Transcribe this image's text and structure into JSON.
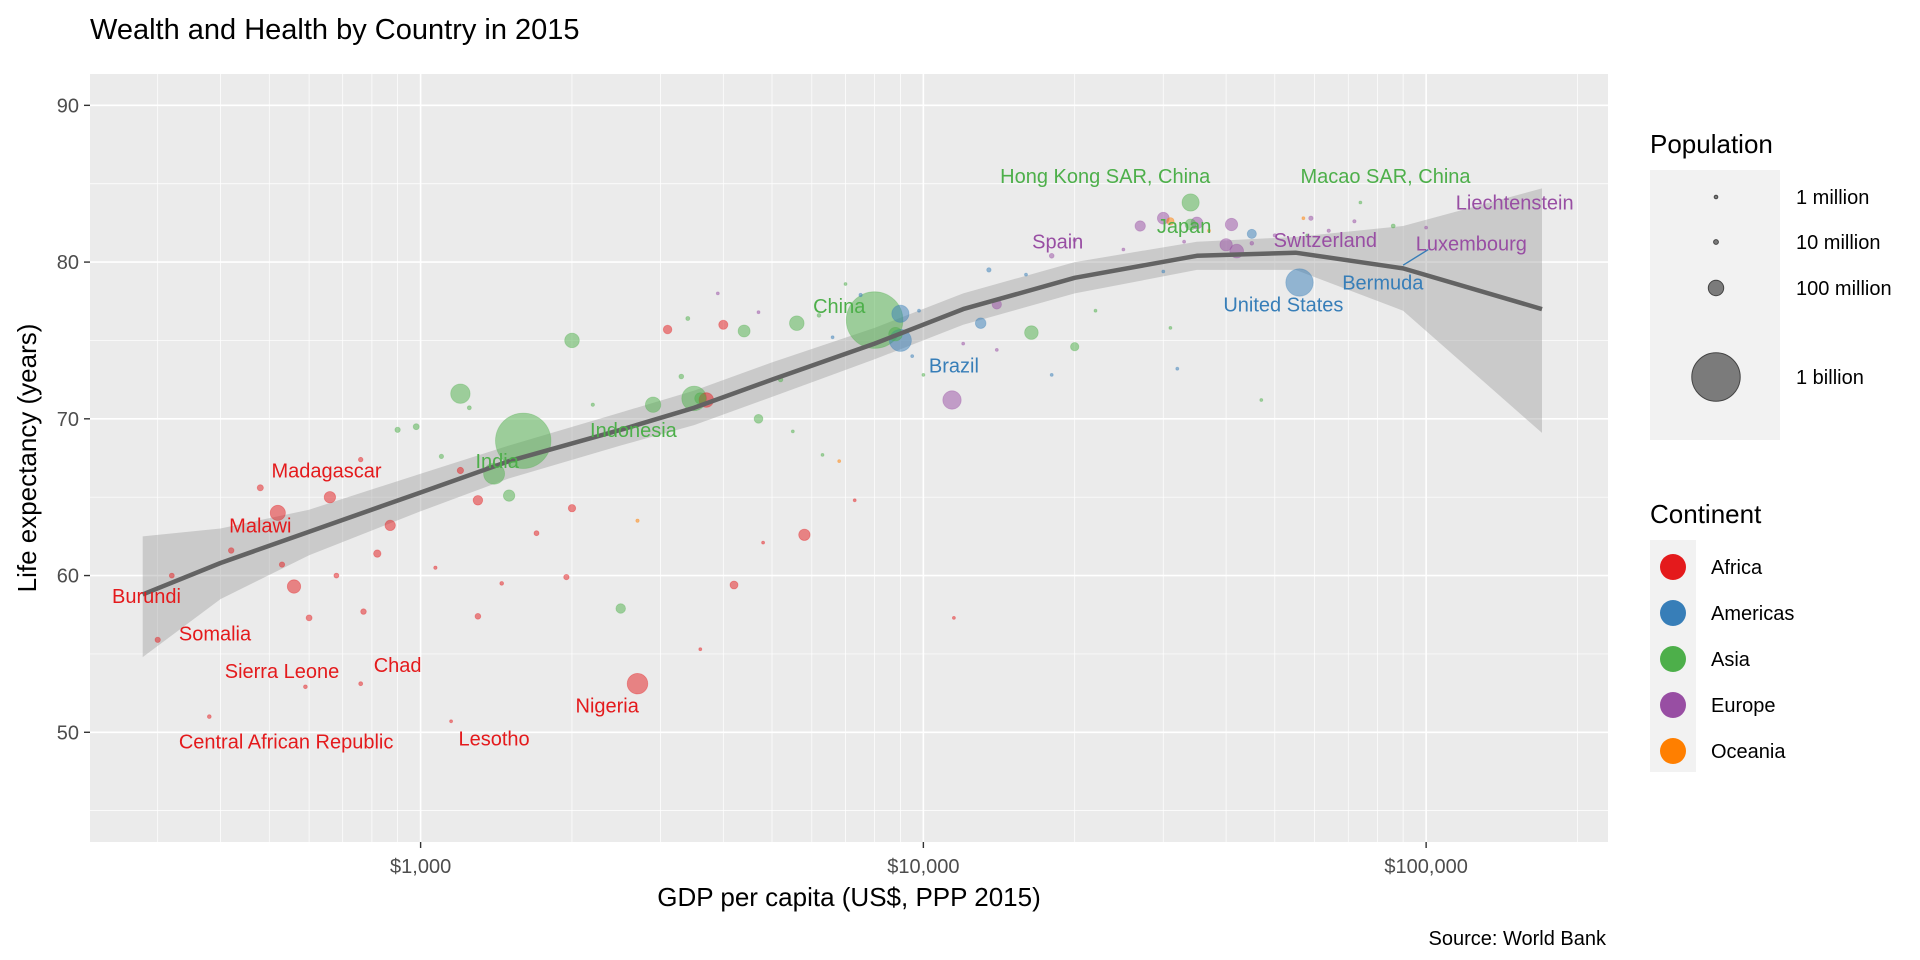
{
  "chart_data": {
    "type": "scatter",
    "title": "Wealth and Health by Country in 2015",
    "xlabel": "GDP per capita (US$, PPP 2015)",
    "ylabel": "Life expectancy (years)",
    "caption": "Source: World Bank",
    "x_scale": "log10",
    "xlim": [
      220,
      230000
    ],
    "ylim": [
      43,
      92
    ],
    "x_ticks": [
      1000,
      10000,
      100000
    ],
    "x_tick_labels": [
      "$1,000",
      "$10,000",
      "$100,000"
    ],
    "y_ticks": [
      50,
      60,
      70,
      80,
      90
    ],
    "y_tick_labels": [
      "50",
      "60",
      "70",
      "80",
      "90"
    ],
    "grid": true,
    "legend_position": "right",
    "legend_size": {
      "title": "Population",
      "entries": [
        {
          "label": "1 million",
          "value": 1
        },
        {
          "label": "10 million",
          "value": 10
        },
        {
          "label": "100 million",
          "value": 100
        },
        {
          "label": "1 billion",
          "value": 1000
        }
      ]
    },
    "legend_color": {
      "title": "Continent",
      "entries": [
        {
          "label": "Africa",
          "color": "#E41A1C"
        },
        {
          "label": "Americas",
          "color": "#377EB8"
        },
        {
          "label": "Asia",
          "color": "#4DAF4A"
        },
        {
          "label": "Europe",
          "color": "#984EA3"
        },
        {
          "label": "Oceania",
          "color": "#FF7F00"
        }
      ]
    },
    "trend": [
      [
        280,
        58.8
      ],
      [
        400,
        60.8
      ],
      [
        600,
        62.8
      ],
      [
        1000,
        65.3
      ],
      [
        1500,
        67.3
      ],
      [
        2500,
        69.3
      ],
      [
        3500,
        70.7
      ],
      [
        5000,
        72.5
      ],
      [
        8000,
        74.8
      ],
      [
        12000,
        77.0
      ],
      [
        20000,
        79.0
      ],
      [
        35000,
        80.4
      ],
      [
        55000,
        80.6
      ],
      [
        90000,
        79.6
      ],
      [
        170000,
        77.0
      ]
    ],
    "trend_band": {
      "upper": [
        [
          280,
          62.5
        ],
        [
          400,
          63.0
        ],
        [
          600,
          64.2
        ],
        [
          1000,
          66.5
        ],
        [
          1500,
          68.3
        ],
        [
          2500,
          70.4
        ],
        [
          3500,
          71.8
        ],
        [
          5000,
          73.6
        ],
        [
          8000,
          75.8
        ],
        [
          12000,
          78.0
        ],
        [
          20000,
          80.0
        ],
        [
          35000,
          81.3
        ],
        [
          55000,
          81.6
        ],
        [
          90000,
          82.3
        ],
        [
          170000,
          84.7
        ]
      ],
      "lower": [
        [
          280,
          54.8
        ],
        [
          400,
          58.5
        ],
        [
          600,
          61.3
        ],
        [
          1000,
          64.1
        ],
        [
          1500,
          66.2
        ],
        [
          2500,
          68.3
        ],
        [
          3500,
          69.6
        ],
        [
          5000,
          71.4
        ],
        [
          8000,
          73.8
        ],
        [
          12000,
          76.0
        ],
        [
          20000,
          78.0
        ],
        [
          35000,
          79.5
        ],
        [
          55000,
          79.5
        ],
        [
          90000,
          76.9
        ],
        [
          170000,
          69.1
        ]
      ]
    },
    "labels": [
      {
        "text": "Madagascar",
        "x": 650,
        "y": 66.7,
        "continent": "Africa"
      },
      {
        "text": "Malawi",
        "x": 480,
        "y": 63.2,
        "continent": "Africa"
      },
      {
        "text": "Burundi",
        "x": 285,
        "y": 58.7,
        "continent": "Africa"
      },
      {
        "text": "Somalia",
        "x": 390,
        "y": 56.3,
        "continent": "Africa"
      },
      {
        "text": "Sierra Leone",
        "x": 530,
        "y": 53.9,
        "continent": "Africa"
      },
      {
        "text": "Chad",
        "x": 900,
        "y": 54.3,
        "continent": "Africa"
      },
      {
        "text": "Central African Republic",
        "x": 540,
        "y": 49.4,
        "continent": "Africa"
      },
      {
        "text": "Lesotho",
        "x": 1400,
        "y": 49.6,
        "continent": "Africa"
      },
      {
        "text": "Nigeria",
        "x": 2350,
        "y": 51.7,
        "continent": "Africa"
      },
      {
        "text": "India",
        "x": 1420,
        "y": 67.3,
        "continent": "Asia"
      },
      {
        "text": "Indonesia",
        "x": 2650,
        "y": 69.3,
        "continent": "Asia"
      },
      {
        "text": "China",
        "x": 6800,
        "y": 77.2,
        "continent": "Asia"
      },
      {
        "text": "Brazil",
        "x": 11500,
        "y": 73.4,
        "continent": "Americas"
      },
      {
        "text": "Hong Kong SAR, China",
        "x": 23000,
        "y": 85.5,
        "continent": "Asia"
      },
      {
        "text": "Macao SAR, China",
        "x": 83000,
        "y": 85.5,
        "continent": "Asia"
      },
      {
        "text": "Japan",
        "x": 33000,
        "y": 82.3,
        "continent": "Asia"
      },
      {
        "text": "Spain",
        "x": 18500,
        "y": 81.3,
        "continent": "Europe"
      },
      {
        "text": "Switzerland",
        "x": 63000,
        "y": 81.4,
        "continent": "Europe"
      },
      {
        "text": "Liechtenstein",
        "x": 150000,
        "y": 83.8,
        "continent": "Europe"
      },
      {
        "text": "Luxembourg",
        "x": 123000,
        "y": 81.2,
        "continent": "Europe"
      },
      {
        "text": "Bermuda",
        "x": 82000,
        "y": 78.7,
        "continent": "Americas"
      },
      {
        "text": "United States",
        "x": 52000,
        "y": 77.3,
        "continent": "Americas"
      }
    ],
    "label_segments": [
      {
        "x1": 101000,
        "y1": 80.8,
        "x2": 90000,
        "y2": 79.8,
        "continent": "Americas"
      }
    ],
    "points": [
      {
        "x": 1600,
        "y": 68.6,
        "pop": 1311,
        "continent": "Asia"
      },
      {
        "x": 8000,
        "y": 76.3,
        "pop": 1371,
        "continent": "Asia"
      },
      {
        "x": 56000,
        "y": 78.7,
        "pop": 321,
        "continent": "Americas"
      },
      {
        "x": 2700,
        "y": 53.1,
        "pop": 182,
        "continent": "Africa"
      },
      {
        "x": 3500,
        "y": 71.3,
        "pop": 258,
        "continent": "Asia"
      },
      {
        "x": 9000,
        "y": 75.0,
        "pop": 206,
        "continent": "Americas"
      },
      {
        "x": 1400,
        "y": 66.5,
        "pop": 188,
        "continent": "Asia"
      },
      {
        "x": 1200,
        "y": 71.6,
        "pop": 161,
        "continent": "Asia"
      },
      {
        "x": 11400,
        "y": 71.2,
        "pop": 144,
        "continent": "Europe"
      },
      {
        "x": 34000,
        "y": 83.8,
        "pop": 127,
        "continent": "Asia"
      },
      {
        "x": 9000,
        "y": 76.7,
        "pop": 127,
        "continent": "Americas"
      },
      {
        "x": 2900,
        "y": 70.9,
        "pop": 101,
        "continent": "Asia"
      },
      {
        "x": 520,
        "y": 64.0,
        "pop": 99,
        "continent": "Africa"
      },
      {
        "x": 5600,
        "y": 76.1,
        "pop": 91,
        "continent": "Asia"
      },
      {
        "x": 8800,
        "y": 75.4,
        "pop": 79,
        "continent": "Asia"
      },
      {
        "x": 42000,
        "y": 80.7,
        "pop": 82,
        "continent": "Europe"
      },
      {
        "x": 16400,
        "y": 75.5,
        "pop": 79,
        "continent": "Asia"
      },
      {
        "x": 2000,
        "y": 75.0,
        "pop": 91,
        "continent": "Asia"
      },
      {
        "x": 560,
        "y": 59.3,
        "pop": 77,
        "continent": "Africa"
      },
      {
        "x": 660,
        "y": 65.0,
        "pop": 55,
        "continent": "Africa"
      },
      {
        "x": 5800,
        "y": 62.6,
        "pop": 55,
        "continent": "Africa"
      },
      {
        "x": 3600,
        "y": 71.3,
        "pop": 54,
        "continent": "Asia"
      },
      {
        "x": 1500,
        "y": 65.1,
        "pop": 56,
        "continent": "Asia"
      },
      {
        "x": 3700,
        "y": 71.2,
        "pop": 90,
        "continent": "Africa"
      },
      {
        "x": 40000,
        "y": 81.1,
        "pop": 65,
        "continent": "Europe"
      },
      {
        "x": 41000,
        "y": 82.4,
        "pop": 66,
        "continent": "Europe"
      },
      {
        "x": 35000,
        "y": 82.5,
        "pop": 60,
        "continent": "Europe"
      },
      {
        "x": 27000,
        "y": 82.3,
        "pop": 46,
        "continent": "Europe"
      },
      {
        "x": 34000,
        "y": 82.4,
        "pop": 51,
        "continent": "Asia"
      },
      {
        "x": 4400,
        "y": 75.6,
        "pop": 61,
        "continent": "Asia"
      },
      {
        "x": 870,
        "y": 63.2,
        "pop": 47,
        "continent": "Africa"
      },
      {
        "x": 1300,
        "y": 64.8,
        "pop": 40,
        "continent": "Africa"
      },
      {
        "x": 13000,
        "y": 76.1,
        "pop": 48,
        "continent": "Americas"
      },
      {
        "x": 2500,
        "y": 57.9,
        "pop": 40,
        "continent": "Asia"
      },
      {
        "x": 4200,
        "y": 59.4,
        "pop": 27,
        "continent": "Africa"
      },
      {
        "x": 4000,
        "y": 76.0,
        "pop": 36,
        "continent": "Africa"
      },
      {
        "x": 4700,
        "y": 70.0,
        "pop": 33,
        "continent": "Asia"
      },
      {
        "x": 20000,
        "y": 74.6,
        "pop": 30,
        "continent": "Asia"
      },
      {
        "x": 2000,
        "y": 64.3,
        "pop": 24,
        "continent": "Africa"
      },
      {
        "x": 3100,
        "y": 75.7,
        "pop": 31,
        "continent": "Africa"
      },
      {
        "x": 14000,
        "y": 77.3,
        "pop": 38,
        "continent": "Europe"
      },
      {
        "x": 30000,
        "y": 82.8,
        "pop": 60,
        "continent": "Europe"
      },
      {
        "x": 45000,
        "y": 81.8,
        "pop": 36,
        "continent": "Americas"
      },
      {
        "x": 31000,
        "y": 82.6,
        "pop": 24,
        "continent": "Oceania"
      },
      {
        "x": 300,
        "y": 55.9,
        "pop": 12,
        "continent": "Africa"
      },
      {
        "x": 380,
        "y": 51.0,
        "pop": 6,
        "continent": "Africa"
      },
      {
        "x": 320,
        "y": 60.0,
        "pop": 11,
        "continent": "Africa"
      },
      {
        "x": 420,
        "y": 61.6,
        "pop": 13,
        "continent": "Africa"
      },
      {
        "x": 480,
        "y": 65.6,
        "pop": 16,
        "continent": "Africa"
      },
      {
        "x": 530,
        "y": 60.7,
        "pop": 12,
        "continent": "Africa"
      },
      {
        "x": 600,
        "y": 57.3,
        "pop": 15,
        "continent": "Africa"
      },
      {
        "x": 680,
        "y": 60.0,
        "pop": 11,
        "continent": "Africa"
      },
      {
        "x": 770,
        "y": 57.7,
        "pop": 13,
        "continent": "Africa"
      },
      {
        "x": 760,
        "y": 53.1,
        "pop": 7,
        "continent": "Africa"
      },
      {
        "x": 820,
        "y": 61.4,
        "pop": 23,
        "continent": "Africa"
      },
      {
        "x": 1200,
        "y": 66.7,
        "pop": 17,
        "continent": "Africa"
      },
      {
        "x": 1300,
        "y": 57.4,
        "pop": 14,
        "continent": "Africa"
      },
      {
        "x": 1700,
        "y": 62.7,
        "pop": 11,
        "continent": "Africa"
      },
      {
        "x": 1950,
        "y": 59.9,
        "pop": 12,
        "continent": "Africa"
      },
      {
        "x": 2700,
        "y": 63.5,
        "pop": 5,
        "continent": "Oceania"
      },
      {
        "x": 1450,
        "y": 59.5,
        "pop": 6,
        "continent": "Africa"
      },
      {
        "x": 1070,
        "y": 60.5,
        "pop": 5,
        "continent": "Africa"
      },
      {
        "x": 1150,
        "y": 50.7,
        "pop": 2,
        "continent": "Africa"
      },
      {
        "x": 590,
        "y": 52.9,
        "pop": 6,
        "continent": "Africa"
      },
      {
        "x": 760,
        "y": 67.4,
        "pop": 9,
        "continent": "Africa"
      },
      {
        "x": 980,
        "y": 69.5,
        "pop": 15,
        "continent": "Asia"
      },
      {
        "x": 900,
        "y": 69.3,
        "pop": 12,
        "continent": "Asia"
      },
      {
        "x": 1100,
        "y": 67.6,
        "pop": 8,
        "continent": "Asia"
      },
      {
        "x": 1250,
        "y": 70.7,
        "pop": 7,
        "continent": "Asia"
      },
      {
        "x": 2200,
        "y": 70.9,
        "pop": 5,
        "continent": "Asia"
      },
      {
        "x": 2700,
        "y": 69.6,
        "pop": 6,
        "continent": "Asia"
      },
      {
        "x": 3300,
        "y": 72.7,
        "pop": 10,
        "continent": "Asia"
      },
      {
        "x": 3400,
        "y": 76.4,
        "pop": 7,
        "continent": "Asia"
      },
      {
        "x": 5200,
        "y": 72.5,
        "pop": 9,
        "continent": "Asia"
      },
      {
        "x": 7000,
        "y": 78.6,
        "pop": 4,
        "continent": "Asia"
      },
      {
        "x": 7500,
        "y": 77.9,
        "pop": 5,
        "continent": "Americas"
      },
      {
        "x": 6200,
        "y": 76.6,
        "pop": 6,
        "continent": "Asia"
      },
      {
        "x": 6600,
        "y": 75.2,
        "pop": 4,
        "continent": "Americas"
      },
      {
        "x": 9500,
        "y": 74.0,
        "pop": 3,
        "continent": "Americas"
      },
      {
        "x": 10000,
        "y": 72.8,
        "pop": 3,
        "continent": "Asia"
      },
      {
        "x": 12000,
        "y": 74.8,
        "pop": 4,
        "continent": "Europe"
      },
      {
        "x": 14000,
        "y": 74.4,
        "pop": 2,
        "continent": "Europe"
      },
      {
        "x": 13500,
        "y": 79.5,
        "pop": 8,
        "continent": "Americas"
      },
      {
        "x": 18000,
        "y": 80.4,
        "pop": 10,
        "continent": "Europe"
      },
      {
        "x": 20000,
        "y": 81.4,
        "pop": 5,
        "continent": "Europe"
      },
      {
        "x": 25000,
        "y": 80.8,
        "pop": 3,
        "continent": "Europe"
      },
      {
        "x": 33000,
        "y": 81.3,
        "pop": 4,
        "continent": "Europe"
      },
      {
        "x": 37000,
        "y": 82.0,
        "pop": 3,
        "continent": "Oceania"
      },
      {
        "x": 45000,
        "y": 81.2,
        "pop": 6,
        "continent": "Europe"
      },
      {
        "x": 50000,
        "y": 81.7,
        "pop": 5,
        "continent": "Europe"
      },
      {
        "x": 59000,
        "y": 82.8,
        "pop": 8,
        "continent": "Europe"
      },
      {
        "x": 64000,
        "y": 82.0,
        "pop": 5,
        "continent": "Europe"
      },
      {
        "x": 72000,
        "y": 82.6,
        "pop": 5,
        "continent": "Europe"
      },
      {
        "x": 86000,
        "y": 82.3,
        "pop": 7,
        "continent": "Asia"
      },
      {
        "x": 100000,
        "y": 82.2,
        "pop": 1,
        "continent": "Europe"
      },
      {
        "x": 58000,
        "y": 81.7,
        "pop": 4,
        "continent": "Asia"
      },
      {
        "x": 57000,
        "y": 82.8,
        "pop": 3,
        "continent": "Oceania"
      },
      {
        "x": 74000,
        "y": 83.8,
        "pop": 1,
        "continent": "Asia"
      },
      {
        "x": 9800,
        "y": 76.9,
        "pop": 2,
        "continent": "Americas"
      },
      {
        "x": 11500,
        "y": 57.3,
        "pop": 2,
        "continent": "Africa"
      },
      {
        "x": 7300,
        "y": 64.8,
        "pop": 1,
        "continent": "Africa"
      },
      {
        "x": 6800,
        "y": 67.3,
        "pop": 1,
        "continent": "Oceania"
      },
      {
        "x": 6300,
        "y": 67.7,
        "pop": 2,
        "continent": "Asia"
      },
      {
        "x": 5500,
        "y": 69.2,
        "pop": 2,
        "continent": "Asia"
      },
      {
        "x": 4800,
        "y": 62.1,
        "pop": 2,
        "continent": "Africa"
      },
      {
        "x": 3600,
        "y": 55.3,
        "pop": 1,
        "continent": "Africa"
      },
      {
        "x": 3900,
        "y": 78.0,
        "pop": 2,
        "continent": "Europe"
      },
      {
        "x": 4700,
        "y": 76.8,
        "pop": 3,
        "continent": "Europe"
      },
      {
        "x": 16000,
        "y": 79.2,
        "pop": 2,
        "continent": "Americas"
      },
      {
        "x": 18000,
        "y": 72.8,
        "pop": 2,
        "continent": "Americas"
      },
      {
        "x": 22000,
        "y": 76.9,
        "pop": 2,
        "continent": "Asia"
      },
      {
        "x": 30000,
        "y": 79.4,
        "pop": 3,
        "continent": "Americas"
      },
      {
        "x": 31000,
        "y": 75.8,
        "pop": 1,
        "continent": "Asia"
      },
      {
        "x": 32000,
        "y": 73.2,
        "pop": 2,
        "continent": "Americas"
      },
      {
        "x": 47000,
        "y": 71.2,
        "pop": 1,
        "continent": "Asia"
      }
    ]
  }
}
